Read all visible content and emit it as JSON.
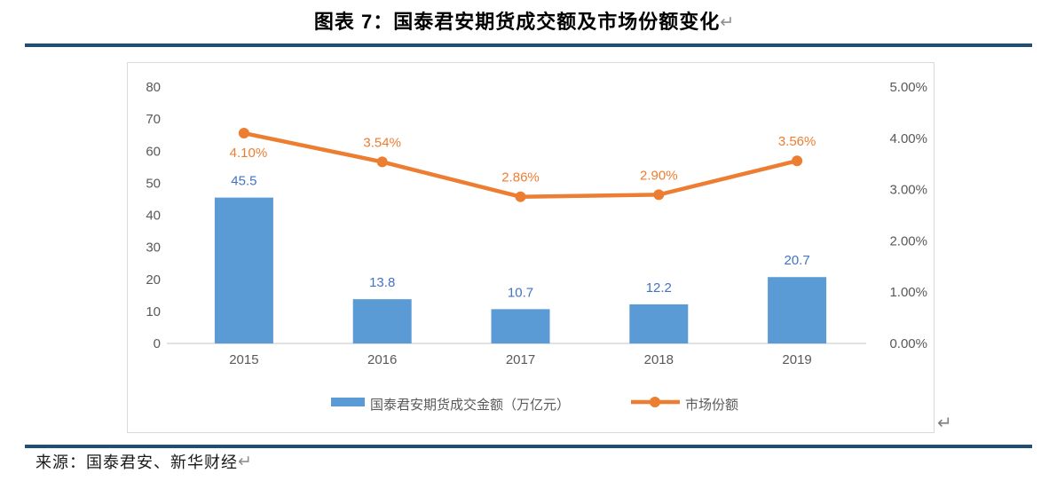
{
  "title": {
    "text": "图表 7：国泰君安期货成交额及市场份额变化"
  },
  "marks": {
    "title": "↵",
    "chart": "↵",
    "source": "↵"
  },
  "source": {
    "text": "来源：国泰君安、新华财经"
  },
  "colors": {
    "bar": "#5B9BD5",
    "bar_label": "#4472C4",
    "line": "#ED7D31",
    "axis_text": "#595959",
    "axis_line": "#D9D9D9",
    "rule": "#1F4E79",
    "paragraph_mark": "#7F7F7F"
  },
  "chart_data": {
    "type": "bar",
    "subtype": "combo-bar-line",
    "categories": [
      "2015",
      "2016",
      "2017",
      "2018",
      "2019"
    ],
    "series": [
      {
        "name": "国泰君安期货成交金额（万亿元）",
        "type": "bar",
        "axis": "left",
        "values": [
          45.5,
          13.8,
          10.7,
          12.2,
          20.7
        ],
        "labels": [
          "45.5",
          "13.8",
          "10.7",
          "12.2",
          "20.7"
        ],
        "color": "#5B9BD5",
        "label_color": "#4472C4"
      },
      {
        "name": "市场份额",
        "type": "line",
        "axis": "right",
        "values": [
          4.1,
          3.54,
          2.86,
          2.9,
          3.56
        ],
        "labels": [
          "4.10%",
          "3.54%",
          "2.86%",
          "2.90%",
          "3.56%"
        ],
        "label_below": [
          true,
          false,
          false,
          false,
          false
        ],
        "color": "#ED7D31"
      }
    ],
    "title": "",
    "xlabel": "",
    "ylabel": "",
    "left_axis": {
      "min": 0,
      "max": 80,
      "ticks": [
        "80",
        "70",
        "60",
        "50",
        "40",
        "30",
        "20",
        "10",
        "0"
      ]
    },
    "right_axis": {
      "min": 0,
      "max": 5,
      "ticks": [
        "5.00%",
        "4.00%",
        "3.00%",
        "2.00%",
        "1.00%",
        "0.00%"
      ]
    },
    "grid": false,
    "legend_position": "bottom"
  }
}
